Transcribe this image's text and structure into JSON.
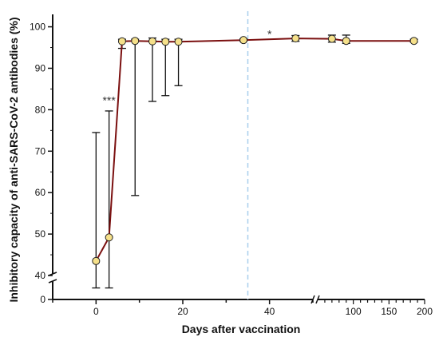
{
  "chart_data": {
    "type": "line",
    "title": "",
    "xlabel": "Days after vaccination",
    "ylabel": "Inhibitory capacity of anti-SARS-CoV-2 antibodies (%)",
    "x_segments": [
      {
        "range": [
          -10,
          50
        ],
        "ticks": [
          0,
          20,
          40
        ],
        "scale": "linear"
      },
      {
        "range": [
          50,
          200
        ],
        "ticks": [
          100,
          150,
          200
        ],
        "scale": "linear"
      }
    ],
    "y_segments": [
      {
        "range": [
          0,
          5
        ],
        "ticks": [
          0
        ]
      },
      {
        "range": [
          40,
          103
        ],
        "ticks": [
          40,
          50,
          60,
          70,
          80,
          90,
          100
        ]
      }
    ],
    "y_tick_labels": [
      "0",
      "40",
      "50",
      "60",
      "70",
      "80",
      "90",
      "100"
    ],
    "x_tick_labels": [
      "0",
      "20",
      "40",
      "100",
      "150",
      "200"
    ],
    "reference_line": {
      "x": 35,
      "color": "#a9cfee",
      "style": "dashed"
    },
    "series": [
      {
        "color": "#7b1010",
        "marker_fill": "#f5e08a",
        "points": [
          {
            "x": 0,
            "y": 43.5,
            "lo": 37,
            "hi": 74.5
          },
          {
            "x": 3,
            "y": 49.2,
            "lo": 37,
            "hi": 79.7
          },
          {
            "x": 6,
            "y": 96.5,
            "lo": 94.8,
            "hi": 97.0
          },
          {
            "x": 9,
            "y": 96.6,
            "lo": 59.3,
            "hi": 97.0
          },
          {
            "x": 13,
            "y": 96.5,
            "lo": 82.0,
            "hi": 97.3
          },
          {
            "x": 16,
            "y": 96.4,
            "lo": 83.4,
            "hi": 97.0
          },
          {
            "x": 19,
            "y": 96.4,
            "lo": 85.8,
            "hi": 97.0
          },
          {
            "x": 34,
            "y": 96.8,
            "lo": 96.5,
            "hi": 97.1
          },
          {
            "x": 46,
            "y": 97.2,
            "lo": 96.5,
            "hi": 97.9
          },
          {
            "x": 70,
            "y": 97.1,
            "lo": 96.3,
            "hi": 98.0
          },
          {
            "x": 90,
            "y": 96.6,
            "lo": 96.0,
            "hi": 98.0
          },
          {
            "x": 185,
            "y": 96.6,
            "lo": 96.3,
            "hi": 97.0
          }
        ]
      }
    ],
    "annotations": [
      {
        "text": "***",
        "x": 3,
        "y": 82.5
      },
      {
        "text": "*",
        "x": 40,
        "y": 98.5
      }
    ]
  }
}
